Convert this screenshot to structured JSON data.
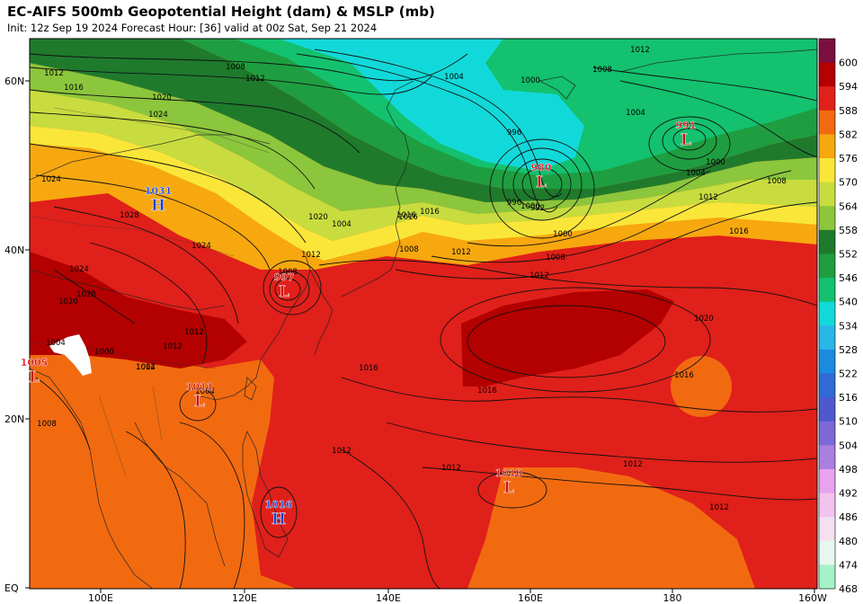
{
  "header": {
    "title": "EC-AIFS 500mb Geopotential Height (dam) & MSLP (mb)",
    "subtitle": "Init: 12z Sep 19 2024   Forecast Hour: [36]   valid at 00z Sat, Sep 21 2024"
  },
  "axes": {
    "lat_labels": [
      "60N",
      "40N",
      "20N",
      "EQ"
    ],
    "lon_labels": [
      "100E",
      "120E",
      "140E",
      "160E",
      "180",
      "160W"
    ]
  },
  "colorbar": {
    "labels": [
      "600",
      "594",
      "588",
      "582",
      "576",
      "570",
      "564",
      "558",
      "552",
      "546",
      "540",
      "534",
      "528",
      "522",
      "516",
      "510",
      "504",
      "498",
      "492",
      "486",
      "480",
      "474",
      "468"
    ],
    "colors": [
      "#7a0f3e",
      "#b30000",
      "#e0201a",
      "#f26a10",
      "#f7a80f",
      "#fae639",
      "#c8dc3f",
      "#8cc63c",
      "#1f7a2c",
      "#1e9e40",
      "#13c16e",
      "#12d9d9",
      "#2ab6e6",
      "#1b8be0",
      "#2f6ad6",
      "#4f58cf",
      "#7c68d6",
      "#a97fe0",
      "#e8a2ee",
      "#f3c3f0",
      "#f4e0f0",
      "#e8f7ee",
      "#a6f1c8"
    ]
  },
  "pressure_centers": [
    {
      "type": "L",
      "value": "991",
      "color": "#cc1111"
    },
    {
      "type": "L",
      "value": "980",
      "color": "#cc1111"
    },
    {
      "type": "L",
      "value": "997",
      "color": "#cc1111"
    },
    {
      "type": "H",
      "value": "1031",
      "color": "#1a3fcf"
    },
    {
      "type": "L",
      "value": "1011",
      "color": "#cc1111"
    },
    {
      "type": "L",
      "value": "1010",
      "color": "#cc1111"
    },
    {
      "type": "H",
      "value": "1016",
      "color": "#1a3fcf"
    },
    {
      "type": "L",
      "value": "1005",
      "color": "#cc1111"
    }
  ],
  "isobar_labels": [
    "1012",
    "1008",
    "1012",
    "1016",
    "1020",
    "1024",
    "1024",
    "1028",
    "1004",
    "1000",
    "996",
    "1000",
    "1004",
    "1008",
    "1012",
    "1016",
    "1008",
    "1004",
    "1012",
    "1016",
    "1020",
    "1024",
    "1012",
    "1008",
    "1016",
    "1012",
    "1008",
    "1012",
    "1012",
    "1016",
    "1020",
    "1016",
    "1012",
    "1012",
    "1012",
    "1012",
    "1012",
    "1004",
    "1008",
    "1004",
    "1000",
    "992",
    "996",
    "1000",
    "1004",
    "1008",
    "1020",
    "1028",
    "1024",
    "1016",
    "1012",
    "1004",
    "1000",
    "1016"
  ]
}
